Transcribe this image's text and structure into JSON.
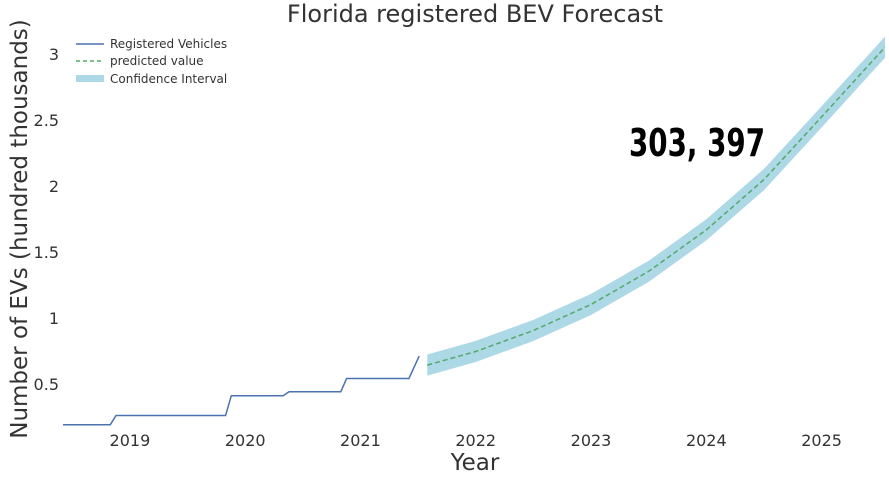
{
  "chart_data": {
    "type": "line",
    "title": "Florida registered BEV Forecast",
    "xlabel": "Year",
    "ylabel": "Number of EVs (hundred thousands)",
    "xlim": [
      2018.42,
      2025.55
    ],
    "ylim": [
      0.15,
      3.15
    ],
    "x_ticks": [
      2019,
      2020,
      2021,
      2022,
      2023,
      2024,
      2025
    ],
    "x_tick_labels": [
      "2019",
      "2020",
      "2021",
      "2022",
      "2023",
      "2024",
      "2025"
    ],
    "y_ticks": [
      0.5,
      1,
      1.5,
      2,
      2.5,
      3
    ],
    "y_tick_labels": [
      "0.5",
      "1",
      "1.5",
      "2",
      "2.5",
      "3"
    ],
    "grid": false,
    "legend_position": "top-left",
    "annotation": "303, 397",
    "colors": {
      "registered": "#4c72b0",
      "predicted": "#55a868",
      "confidence": "#add8e6",
      "text": "#333333"
    },
    "series": [
      {
        "name": "Registered Vehicles",
        "style": "solid",
        "points": [
          [
            2018.42,
            0.19
          ],
          [
            2018.83,
            0.19
          ],
          [
            2018.88,
            0.26
          ],
          [
            2019.83,
            0.26
          ],
          [
            2019.88,
            0.41
          ],
          [
            2020.33,
            0.41
          ],
          [
            2020.38,
            0.44
          ],
          [
            2020.83,
            0.44
          ],
          [
            2020.88,
            0.54
          ],
          [
            2021.42,
            0.54
          ],
          [
            2021.51,
            0.71
          ]
        ]
      },
      {
        "name": "predicted value",
        "style": "dashed",
        "points": [
          [
            2021.58,
            0.642
          ],
          [
            2022.0,
            0.745
          ],
          [
            2022.5,
            0.904
          ],
          [
            2023.0,
            1.101
          ],
          [
            2023.5,
            1.352
          ],
          [
            2024.0,
            1.666
          ],
          [
            2024.5,
            2.047
          ],
          [
            2025.0,
            2.522
          ],
          [
            2025.55,
            3.05
          ]
        ]
      },
      {
        "name": "Confidence Interval",
        "style": "band",
        "upper": [
          [
            2021.58,
            0.722
          ],
          [
            2022.0,
            0.825
          ],
          [
            2022.5,
            0.984
          ],
          [
            2023.0,
            1.181
          ],
          [
            2023.5,
            1.432
          ],
          [
            2024.0,
            1.746
          ],
          [
            2024.5,
            2.127
          ],
          [
            2025.0,
            2.602
          ],
          [
            2025.55,
            3.13
          ]
        ],
        "lower": [
          [
            2021.58,
            0.562
          ],
          [
            2022.0,
            0.665
          ],
          [
            2022.5,
            0.824
          ],
          [
            2023.0,
            1.021
          ],
          [
            2023.5,
            1.272
          ],
          [
            2024.0,
            1.586
          ],
          [
            2024.5,
            1.967
          ],
          [
            2025.0,
            2.442
          ],
          [
            2025.55,
            2.97
          ]
        ]
      }
    ]
  }
}
